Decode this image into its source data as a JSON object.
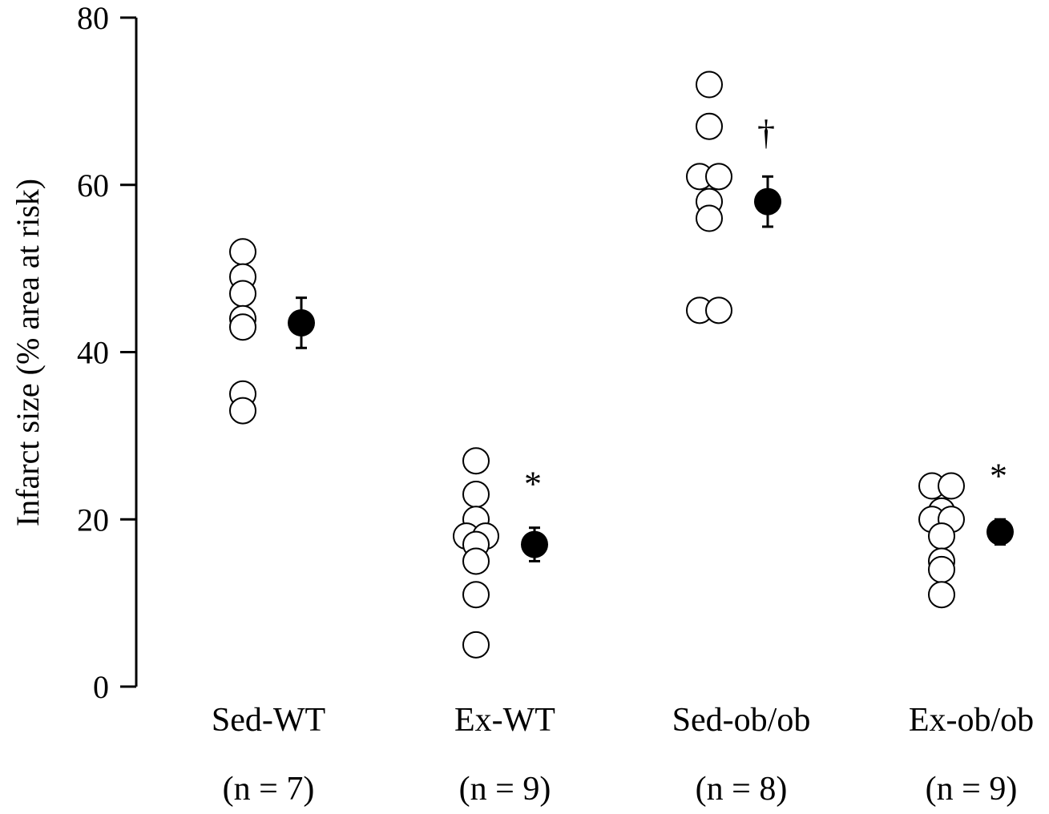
{
  "chart_data": {
    "type": "scatter",
    "ylabel": "Infarct size (% area at risk)",
    "ylim": [
      0,
      80
    ],
    "yticks": [
      0,
      20,
      40,
      60,
      80
    ],
    "grid": false,
    "groups": [
      {
        "name": "Sed-WT",
        "n_label": "(n = 7)",
        "individual": [
          52,
          49,
          47,
          44,
          43,
          35,
          33
        ],
        "mean": 43.5,
        "sem": 3,
        "significance": ""
      },
      {
        "name": "Ex-WT",
        "n_label": "(n = 9)",
        "individual": [
          27,
          23,
          20,
          18,
          18,
          17,
          15,
          11,
          5
        ],
        "mean": 17,
        "sem": 2,
        "significance": "*"
      },
      {
        "name": "Sed-ob/ob",
        "n_label": "(n = 8)",
        "individual": [
          72,
          67,
          61,
          61,
          58,
          56,
          45,
          45
        ],
        "mean": 58,
        "sem": 3,
        "significance": "†"
      },
      {
        "name": "Ex-ob/ob",
        "n_label": "(n = 9)",
        "individual": [
          24,
          24,
          21,
          20,
          20,
          18,
          15,
          14,
          11
        ],
        "mean": 18.5,
        "sem": 1.5,
        "significance": "*"
      }
    ]
  }
}
